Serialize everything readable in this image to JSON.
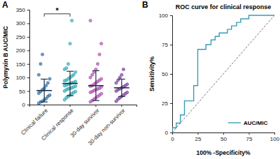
{
  "chart_data": [
    {
      "type": "scatter",
      "panel": "A",
      "ylabel": "Polymyxin B AUC/MIC",
      "categories": [
        "Clinical failure",
        "Clinical response",
        "30-day survivor",
        "30-day non-survivor"
      ],
      "points": [
        [
          5,
          10,
          12,
          18,
          22,
          30,
          35,
          42,
          48,
          55,
          60,
          70,
          80,
          95,
          110,
          150,
          185
        ],
        [
          18,
          25,
          30,
          35,
          40,
          45,
          48,
          50,
          55,
          58,
          60,
          62,
          65,
          68,
          70,
          72,
          75,
          78,
          80,
          82,
          85,
          88,
          90,
          95,
          100,
          105,
          110,
          120,
          130,
          135,
          150,
          225,
          310
        ],
        [
          10,
          15,
          20,
          25,
          30,
          35,
          40,
          45,
          48,
          52,
          55,
          58,
          60,
          65,
          68,
          70,
          75,
          80,
          85,
          90,
          95,
          100,
          110,
          120,
          130,
          150,
          185,
          225,
          310
        ],
        [
          12,
          20,
          25,
          30,
          35,
          40,
          45,
          50,
          55,
          58,
          62,
          66,
          70,
          75,
          80,
          90,
          100,
          110,
          130
        ]
      ],
      "mean": [
        52,
        78,
        70,
        62
      ],
      "sd": [
        42,
        45,
        55,
        32
      ],
      "colors": [
        "#3a7fc1",
        "#3fc1c9",
        "#c95ccb",
        "#8e4bb0"
      ],
      "annotations": [
        {
          "text": "*",
          "between": [
            "Clinical failure",
            "Clinical response"
          ],
          "y": 335
        }
      ],
      "ylim": [
        0,
        350
      ],
      "yticks": [
        0,
        50,
        100,
        150,
        200,
        250,
        300,
        350
      ]
    },
    {
      "type": "line",
      "panel": "B",
      "title": "ROC curve for clinical response",
      "xlabel": "100% -Specificity%",
      "ylabel": "Sensitivity%",
      "series": [
        {
          "name": "AUC/MIC",
          "color": "#3b9bb5",
          "x": [
            0,
            0,
            4,
            4,
            8,
            8,
            12,
            12,
            21,
            21,
            25,
            25,
            33,
            33,
            38,
            38,
            42,
            42,
            46,
            46,
            54,
            54,
            58,
            58,
            63,
            63,
            67,
            67,
            75,
            75,
            100
          ],
          "values": [
            0,
            4,
            4,
            8,
            8,
            15,
            15,
            27,
            27,
            40,
            40,
            71,
            71,
            75,
            75,
            79,
            79,
            82,
            82,
            85,
            85,
            88,
            88,
            91,
            91,
            94,
            94,
            97,
            97,
            100,
            100
          ]
        },
        {
          "color": "#666666",
          "line_style": "dashed",
          "x": [
            0,
            100
          ],
          "values": [
            0,
            100
          ]
        }
      ],
      "legend": "lower right",
      "xlim": [
        0,
        100
      ],
      "ylim": [
        0,
        100
      ],
      "xticks": [
        0,
        25,
        50,
        75,
        100
      ],
      "yticks": [
        0,
        25,
        50,
        75,
        100
      ]
    }
  ]
}
